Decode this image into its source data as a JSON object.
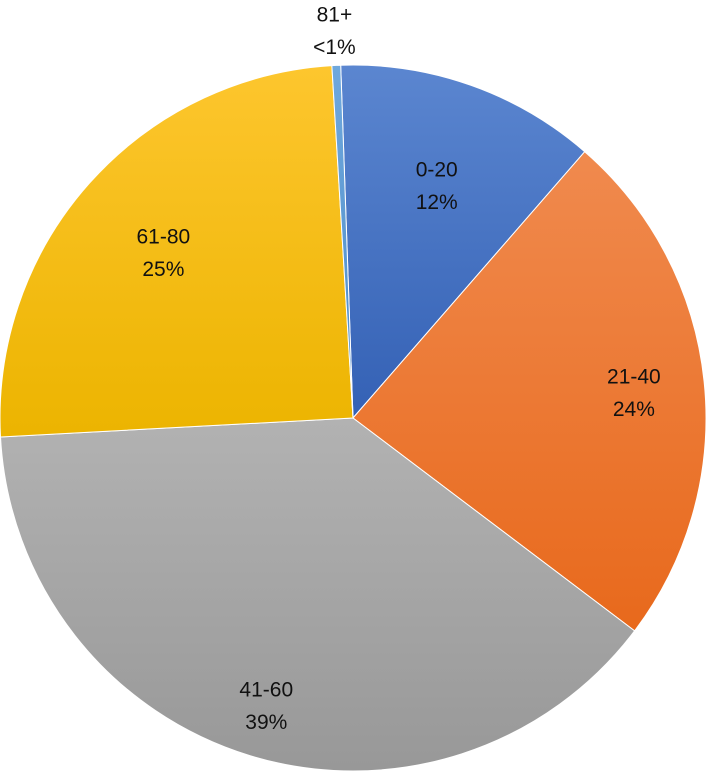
{
  "chart_data": {
    "type": "pie",
    "title": "",
    "start_angle_deg": -2,
    "direction": "clockwise",
    "slices": [
      {
        "label": "0-20",
        "value": 12,
        "percent_label": "12%",
        "color": "#4472C4",
        "color_light": "#5B86D0",
        "color_dark": "#3461B5"
      },
      {
        "label": "21-40",
        "value": 24,
        "percent_label": "24%",
        "color": "#ED7D31",
        "color_light": "#F08A4E",
        "color_dark": "#E8691C"
      },
      {
        "label": "41-60",
        "value": 39,
        "percent_label": "39%",
        "color": "#A5A5A5",
        "color_light": "#B2B2B2",
        "color_dark": "#989898"
      },
      {
        "label": "61-80",
        "value": 25,
        "percent_label": "25%",
        "color": "#FFC000",
        "color_light": "#FDC62E",
        "color_dark": "#ECB400"
      },
      {
        "label": "81+",
        "value": 0.4,
        "percent_label": "<1%",
        "color": "#5B9BD5",
        "color_light": "#6FA8DD",
        "color_dark": "#4D8CC8"
      }
    ]
  }
}
